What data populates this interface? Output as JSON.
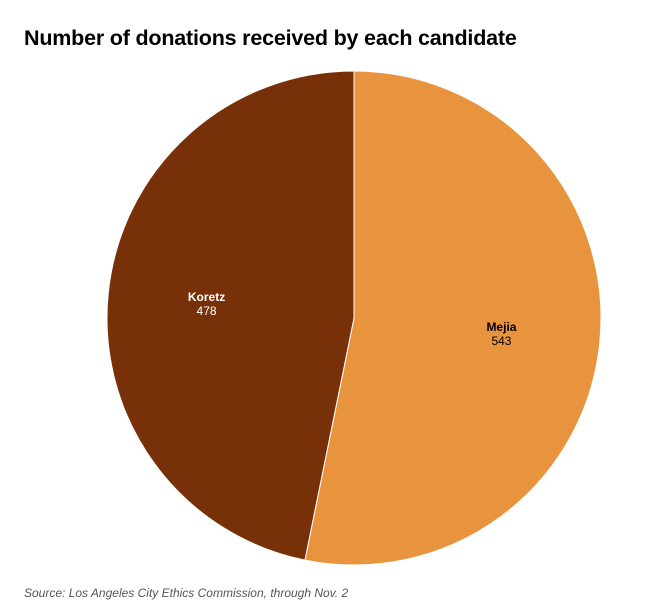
{
  "chart_data": {
    "type": "pie",
    "title": "Number of donations received by each candidate",
    "slices": [
      {
        "label": "Mejia",
        "value": 543,
        "value_label": "543",
        "color": "#E8943F",
        "text_color": "#000000"
      },
      {
        "label": "Koretz",
        "value": 478,
        "value_label": "478",
        "color": "#783009",
        "text_color": "#ffffff"
      }
    ],
    "start": "top, clockwise",
    "legend": "none",
    "source": "Source: Los Angeles City Ethics Commission, through Nov. 2"
  }
}
